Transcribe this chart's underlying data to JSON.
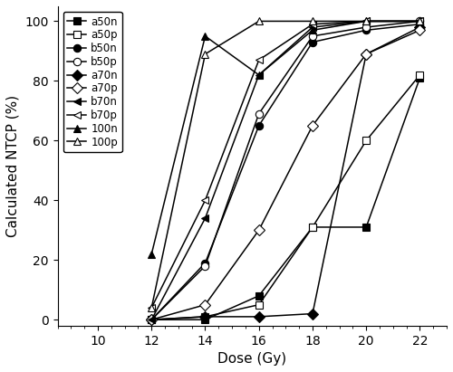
{
  "doses": [
    12,
    14,
    16,
    18,
    20,
    22
  ],
  "series": [
    {
      "key": "a50n",
      "values": [
        0,
        0,
        8,
        31,
        31,
        81
      ],
      "marker": "s",
      "filled": true,
      "label": "a50n"
    },
    {
      "key": "a50p",
      "values": [
        0,
        1,
        5,
        31,
        60,
        82
      ],
      "marker": "s",
      "filled": false,
      "label": "a50p"
    },
    {
      "key": "b50n",
      "values": [
        0,
        19,
        65,
        93,
        97,
        99
      ],
      "marker": "o",
      "filled": true,
      "label": "b50n"
    },
    {
      "key": "b50p",
      "values": [
        0,
        18,
        69,
        95,
        98,
        100
      ],
      "marker": "o",
      "filled": false,
      "label": "b50p"
    },
    {
      "key": "a70n",
      "values": [
        0,
        1,
        1,
        2,
        89,
        98
      ],
      "marker": "D",
      "filled": true,
      "label": "a70n"
    },
    {
      "key": "a70p",
      "values": [
        0,
        5,
        30,
        65,
        89,
        97
      ],
      "marker": "D",
      "filled": false,
      "label": "a70p"
    },
    {
      "key": "b70n",
      "values": [
        0,
        34,
        82,
        98,
        100,
        100
      ],
      "marker": "<",
      "filled": true,
      "label": "b70n"
    },
    {
      "key": "b70p",
      "values": [
        4,
        40,
        87,
        99,
        100,
        100
      ],
      "marker": "<",
      "filled": false,
      "label": "b70p"
    },
    {
      "key": "100n",
      "values": [
        22,
        95,
        82,
        97,
        100,
        100
      ],
      "marker": "^",
      "filled": true,
      "label": "100n"
    },
    {
      "key": "100p",
      "values": [
        4,
        89,
        100,
        100,
        100,
        100
      ],
      "marker": "^",
      "filled": false,
      "label": "100p"
    }
  ],
  "xlabel": "Dose (Gy)",
  "ylabel": "Calculated NTCP (%)",
  "xlim": [
    8.5,
    23.0
  ],
  "ylim": [
    -2,
    105
  ],
  "xticks": [
    10,
    12,
    14,
    16,
    18,
    20,
    22
  ],
  "yticks": [
    0,
    20,
    40,
    60,
    80,
    100
  ],
  "marker_size": 6,
  "linewidth": 1.1,
  "color": "black",
  "legend_fontsize": 8.5,
  "axis_label_fontsize": 11,
  "tick_fontsize": 10
}
